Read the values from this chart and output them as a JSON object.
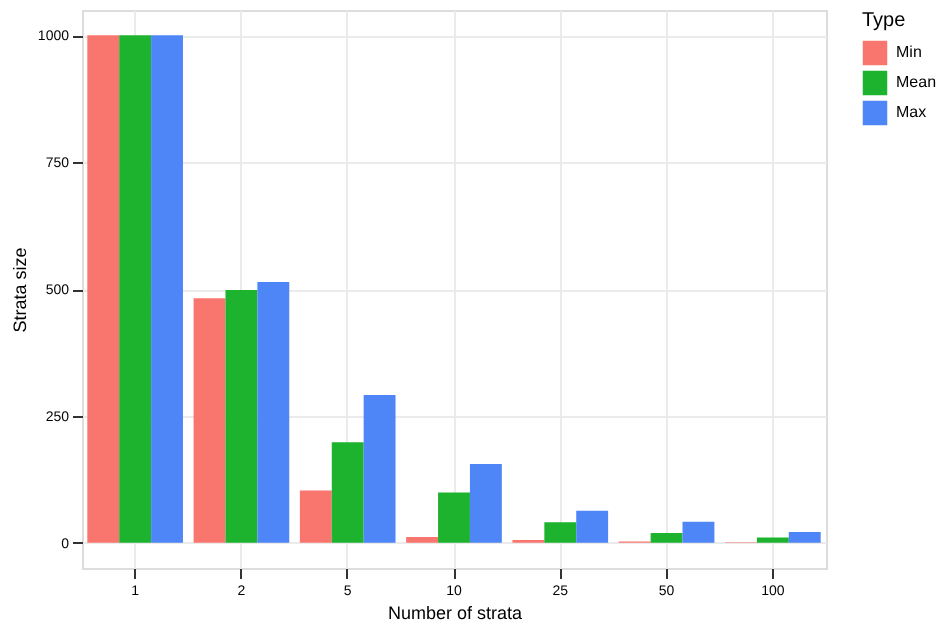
{
  "chart_data": {
    "type": "bar",
    "xlabel": "Number of strata",
    "ylabel": "Strata size",
    "legend_title": "Type",
    "categories": [
      "1",
      "2",
      "5",
      "10",
      "25",
      "50",
      "100"
    ],
    "series": [
      {
        "name": "Min",
        "color": "#f8766d",
        "values": [
          1000,
          482,
          103,
          11,
          5,
          2,
          1
        ]
      },
      {
        "name": "Mean",
        "color": "#1db32f",
        "values": [
          1000,
          498,
          198,
          99,
          40,
          19,
          10
        ]
      },
      {
        "name": "Max",
        "color": "#4f86f7",
        "values": [
          1000,
          514,
          291,
          155,
          63,
          41,
          21
        ]
      }
    ],
    "ylim": [
      -50,
      1050
    ],
    "yticks": [
      0,
      250,
      500,
      750,
      1000
    ],
    "grid": true,
    "legend": "right"
  }
}
